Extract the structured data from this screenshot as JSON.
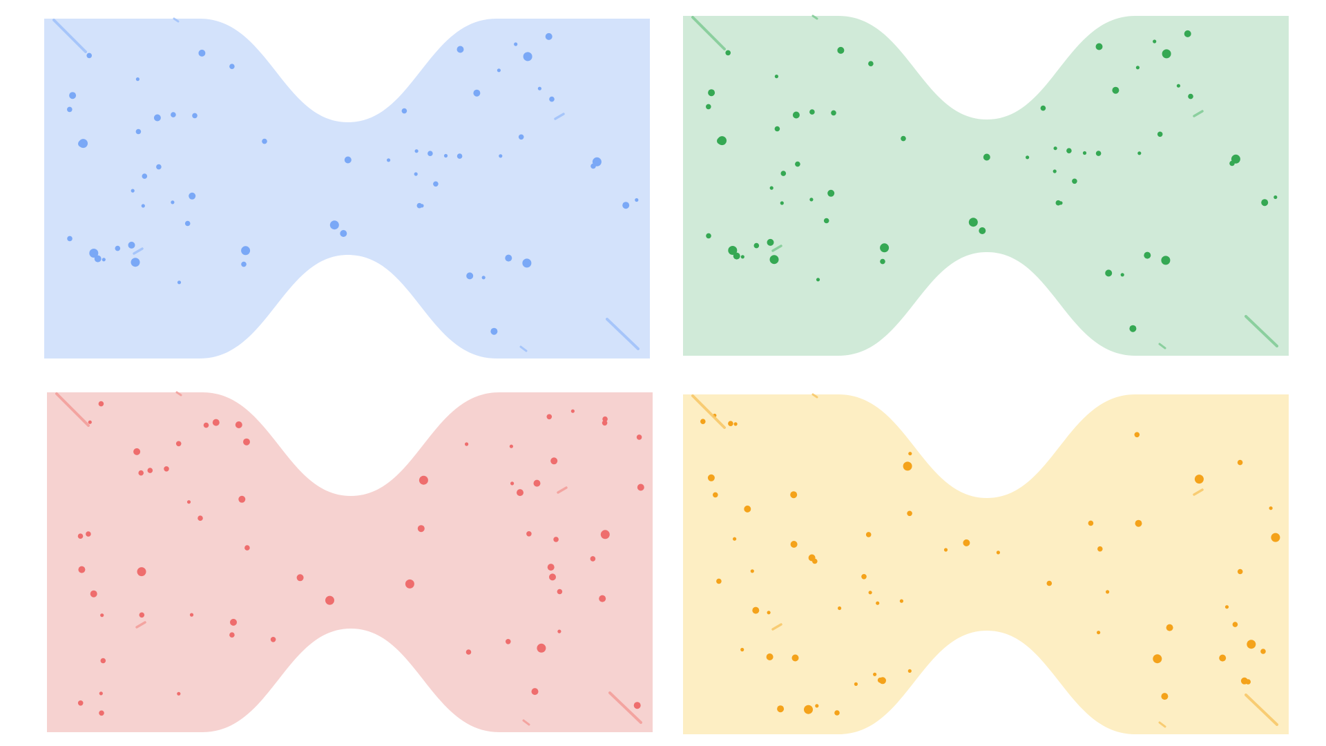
{
  "panels": [
    {
      "id": "blue",
      "fill": "#d3e2fb",
      "dot": "#7aa8f6",
      "streak": "#9fc1fa",
      "seed": 11
    },
    {
      "id": "green",
      "fill": "#d0ead8",
      "dot": "#35a853",
      "streak": "#7fcb95",
      "seed": 11
    },
    {
      "id": "red",
      "fill": "#f6d2d0",
      "dot": "#ee6d6d",
      "streak": "#f39c98",
      "seed": 23
    },
    {
      "id": "yellow",
      "fill": "#fdeec3",
      "dot": "#f4a21a",
      "streak": "#f8c766",
      "seed": 37
    }
  ]
}
